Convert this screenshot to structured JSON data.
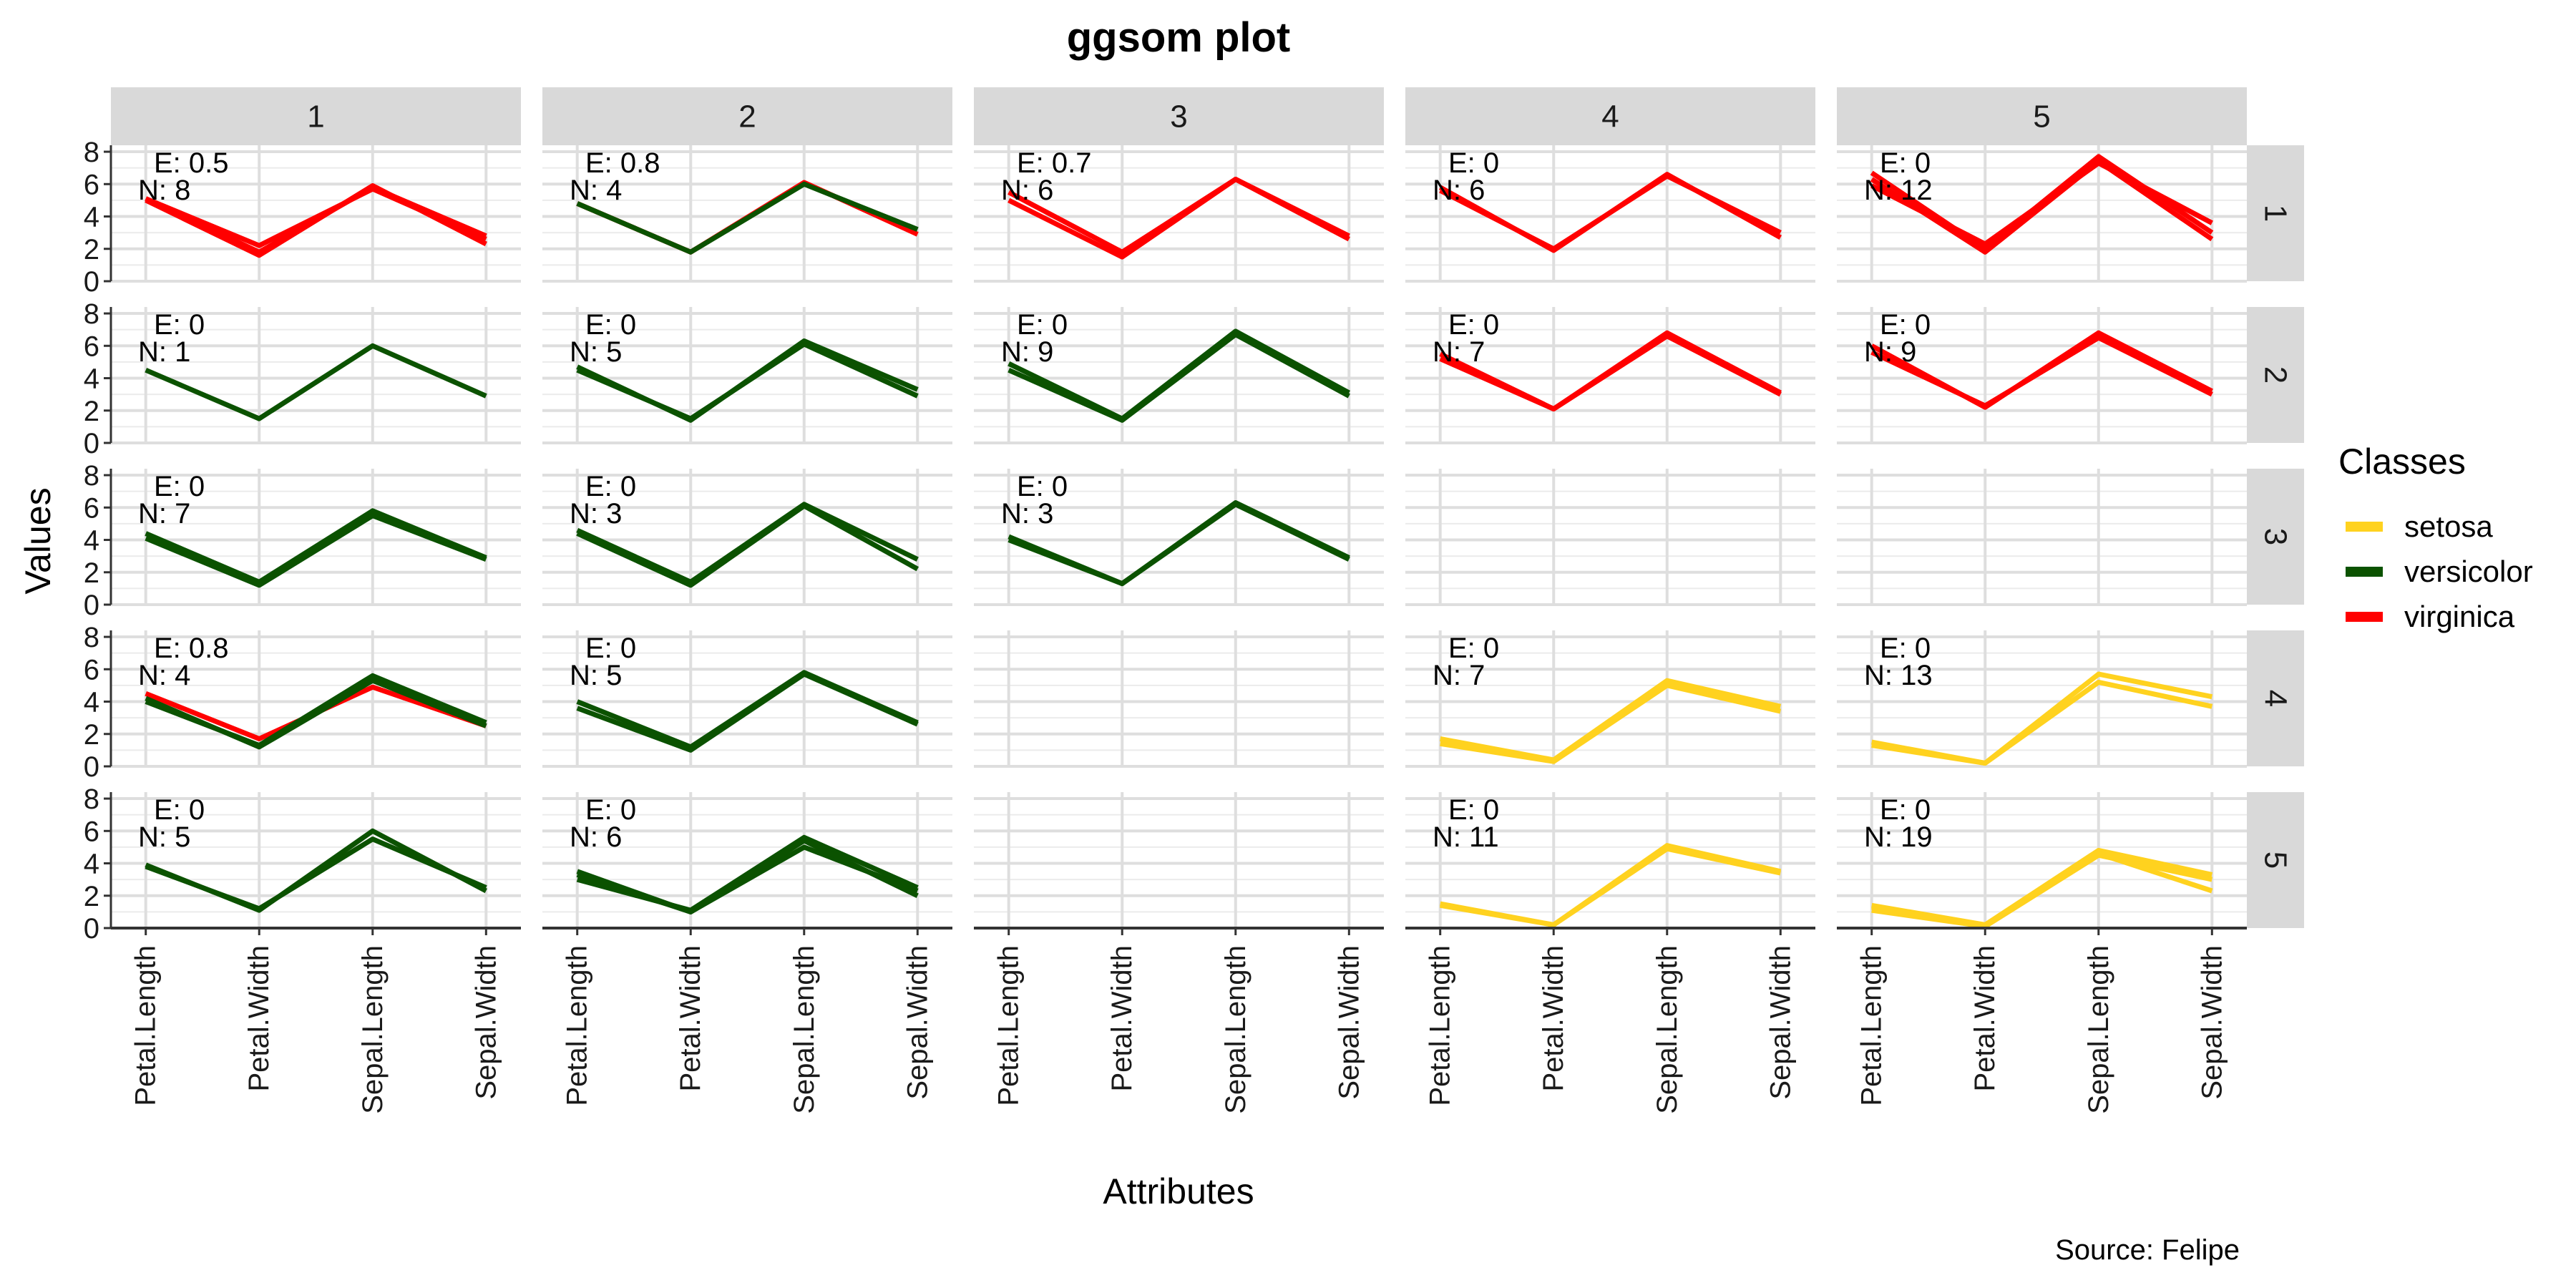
{
  "chart_data": {
    "type": "line",
    "title": "ggsom plot",
    "xlabel": "Attributes",
    "ylabel": "Values",
    "caption": "Source: Felipe",
    "categories": [
      "Petal.Length",
      "Petal.Width",
      "Sepal.Length",
      "Sepal.Width"
    ],
    "y_ticks": [
      0,
      2,
      4,
      6,
      8
    ],
    "ylim": [
      0,
      8.4
    ],
    "grid": true,
    "facet_columns": [
      "1",
      "2",
      "3",
      "4",
      "5"
    ],
    "facet_rows": [
      "1",
      "2",
      "3",
      "4",
      "5"
    ],
    "legend": {
      "title": "Classes",
      "position": "right",
      "items": [
        {
          "name": "setosa",
          "color": "#FFD21F"
        },
        {
          "name": "versicolor",
          "color": "#0B5200"
        },
        {
          "name": "virginica",
          "color": "#FF0000"
        }
      ]
    },
    "cells": [
      {
        "row": 1,
        "col": 1,
        "e_label": "E: 0.5",
        "n_label": "N: 8",
        "series": [
          {
            "class": "virginica",
            "values": [
              5.1,
              1.8,
              5.8,
              2.8
            ]
          },
          {
            "class": "virginica",
            "values": [
              5.0,
              1.6,
              5.9,
              2.3
            ]
          },
          {
            "class": "virginica",
            "values": [
              5.1,
              2.2,
              5.7,
              2.6
            ]
          }
        ]
      },
      {
        "row": 1,
        "col": 2,
        "e_label": "E: 0.8",
        "n_label": "N: 4",
        "series": [
          {
            "class": "virginica",
            "values": [
              4.8,
              1.8,
              6.1,
              2.9
            ]
          },
          {
            "class": "versicolor",
            "values": [
              4.8,
              1.8,
              6.0,
              3.2
            ]
          }
        ]
      },
      {
        "row": 1,
        "col": 3,
        "e_label": "E: 0.7",
        "n_label": "N: 6",
        "series": [
          {
            "class": "virginica",
            "values": [
              5.5,
              1.8,
              6.3,
              2.6
            ]
          },
          {
            "class": "virginica",
            "values": [
              5.0,
              1.5,
              6.3,
              2.8
            ]
          }
        ]
      },
      {
        "row": 1,
        "col": 4,
        "e_label": "E: 0",
        "n_label": "N: 6",
        "series": [
          {
            "class": "virginica",
            "values": [
              5.8,
              1.9,
              6.6,
              2.7
            ]
          },
          {
            "class": "virginica",
            "values": [
              5.6,
              2.0,
              6.5,
              3.0
            ]
          }
        ]
      },
      {
        "row": 1,
        "col": 5,
        "e_label": "E: 0",
        "n_label": "N: 12",
        "series": [
          {
            "class": "virginica",
            "values": [
              6.7,
              2.0,
              7.7,
              3.0
            ]
          },
          {
            "class": "virginica",
            "values": [
              5.9,
              2.3,
              7.3,
              3.6
            ]
          },
          {
            "class": "virginica",
            "values": [
              6.3,
              1.8,
              7.4,
              2.6
            ]
          }
        ]
      },
      {
        "row": 2,
        "col": 1,
        "e_label": "E: 0",
        "n_label": "N: 1",
        "series": [
          {
            "class": "versicolor",
            "values": [
              4.5,
              1.5,
              6.0,
              2.9
            ]
          }
        ]
      },
      {
        "row": 2,
        "col": 2,
        "e_label": "E: 0",
        "n_label": "N: 5",
        "series": [
          {
            "class": "versicolor",
            "values": [
              4.7,
              1.4,
              6.3,
              3.3
            ]
          },
          {
            "class": "versicolor",
            "values": [
              4.5,
              1.5,
              6.1,
              2.9
            ]
          }
        ]
      },
      {
        "row": 2,
        "col": 3,
        "e_label": "E: 0",
        "n_label": "N: 9",
        "series": [
          {
            "class": "versicolor",
            "values": [
              4.9,
              1.5,
              6.9,
              3.1
            ]
          },
          {
            "class": "versicolor",
            "values": [
              4.5,
              1.4,
              6.7,
              2.9
            ]
          }
        ]
      },
      {
        "row": 2,
        "col": 4,
        "e_label": "E: 0",
        "n_label": "N: 7",
        "series": [
          {
            "class": "virginica",
            "values": [
              5.5,
              2.1,
              6.8,
              3.1
            ]
          },
          {
            "class": "virginica",
            "values": [
              5.2,
              2.1,
              6.6,
              3.0
            ]
          }
        ]
      },
      {
        "row": 2,
        "col": 5,
        "e_label": "E: 0",
        "n_label": "N: 9",
        "series": [
          {
            "class": "virginica",
            "values": [
              6.0,
              2.2,
              6.8,
              3.2
            ]
          },
          {
            "class": "virginica",
            "values": [
              5.6,
              2.3,
              6.5,
              3.0
            ]
          }
        ]
      },
      {
        "row": 3,
        "col": 1,
        "e_label": "E: 0",
        "n_label": "N: 7",
        "series": [
          {
            "class": "versicolor",
            "values": [
              4.4,
              1.4,
              5.8,
              2.9
            ]
          },
          {
            "class": "versicolor",
            "values": [
              4.1,
              1.2,
              5.5,
              2.8
            ]
          }
        ]
      },
      {
        "row": 3,
        "col": 2,
        "e_label": "E: 0",
        "n_label": "N: 3",
        "series": [
          {
            "class": "versicolor",
            "values": [
              4.6,
              1.4,
              6.2,
              2.8
            ]
          },
          {
            "class": "versicolor",
            "values": [
              4.4,
              1.2,
              6.1,
              2.2
            ]
          }
        ]
      },
      {
        "row": 3,
        "col": 3,
        "e_label": "E: 0",
        "n_label": "N: 3",
        "series": [
          {
            "class": "versicolor",
            "values": [
              4.2,
              1.3,
              6.3,
              2.9
            ]
          },
          {
            "class": "versicolor",
            "values": [
              4.0,
              1.3,
              6.2,
              2.8
            ]
          }
        ]
      },
      {
        "row": 4,
        "col": 1,
        "e_label": "E: 0.8",
        "n_label": "N: 4",
        "series": [
          {
            "class": "virginica",
            "values": [
              4.5,
              1.7,
              4.9,
              2.5
            ]
          },
          {
            "class": "versicolor",
            "values": [
              4.0,
              1.3,
              5.6,
              2.7
            ]
          },
          {
            "class": "versicolor",
            "values": [
              4.2,
              1.2,
              5.3,
              2.5
            ]
          }
        ]
      },
      {
        "row": 4,
        "col": 2,
        "e_label": "E: 0",
        "n_label": "N: 5",
        "series": [
          {
            "class": "versicolor",
            "values": [
              4.0,
              1.2,
              5.8,
              2.7
            ]
          },
          {
            "class": "versicolor",
            "values": [
              3.6,
              1.0,
              5.7,
              2.6
            ]
          }
        ]
      },
      {
        "row": 4,
        "col": 4,
        "e_label": "E: 0",
        "n_label": "N: 7",
        "series": [
          {
            "class": "setosa",
            "values": [
              1.7,
              0.4,
              5.3,
              3.7
            ]
          },
          {
            "class": "setosa",
            "values": [
              1.4,
              0.3,
              5.0,
              3.4
            ]
          }
        ]
      },
      {
        "row": 4,
        "col": 5,
        "e_label": "E: 0",
        "n_label": "N: 13",
        "series": [
          {
            "class": "setosa",
            "values": [
              1.5,
              0.2,
              5.7,
              4.3
            ]
          },
          {
            "class": "setosa",
            "values": [
              1.3,
              0.2,
              5.2,
              3.7
            ]
          }
        ]
      },
      {
        "row": 5,
        "col": 1,
        "e_label": "E: 0",
        "n_label": "N: 5",
        "series": [
          {
            "class": "versicolor",
            "values": [
              3.9,
              1.1,
              6.0,
              2.3
            ]
          },
          {
            "class": "versicolor",
            "values": [
              3.8,
              1.2,
              5.5,
              2.5
            ]
          }
        ]
      },
      {
        "row": 5,
        "col": 2,
        "e_label": "E: 0",
        "n_label": "N: 6",
        "series": [
          {
            "class": "versicolor",
            "values": [
              3.5,
              1.0,
              5.0,
              2.3
            ]
          },
          {
            "class": "versicolor",
            "values": [
              3.0,
              1.1,
              5.6,
              2.5
            ]
          },
          {
            "class": "versicolor",
            "values": [
              3.3,
              1.0,
              5.4,
              2.0
            ]
          }
        ]
      },
      {
        "row": 5,
        "col": 4,
        "e_label": "E: 0",
        "n_label": "N: 11",
        "series": [
          {
            "class": "setosa",
            "values": [
              1.5,
              0.2,
              5.1,
              3.5
            ]
          },
          {
            "class": "setosa",
            "values": [
              1.4,
              0.2,
              4.9,
              3.4
            ]
          }
        ]
      },
      {
        "row": 5,
        "col": 5,
        "e_label": "E: 0",
        "n_label": "N: 19",
        "series": [
          {
            "class": "setosa",
            "values": [
              1.4,
              0.2,
              4.8,
              3.3
            ]
          },
          {
            "class": "setosa",
            "values": [
              1.1,
              0.1,
              4.5,
              3.0
            ]
          },
          {
            "class": "setosa",
            "values": [
              1.3,
              0.2,
              4.6,
              2.3
            ]
          }
        ]
      }
    ]
  }
}
